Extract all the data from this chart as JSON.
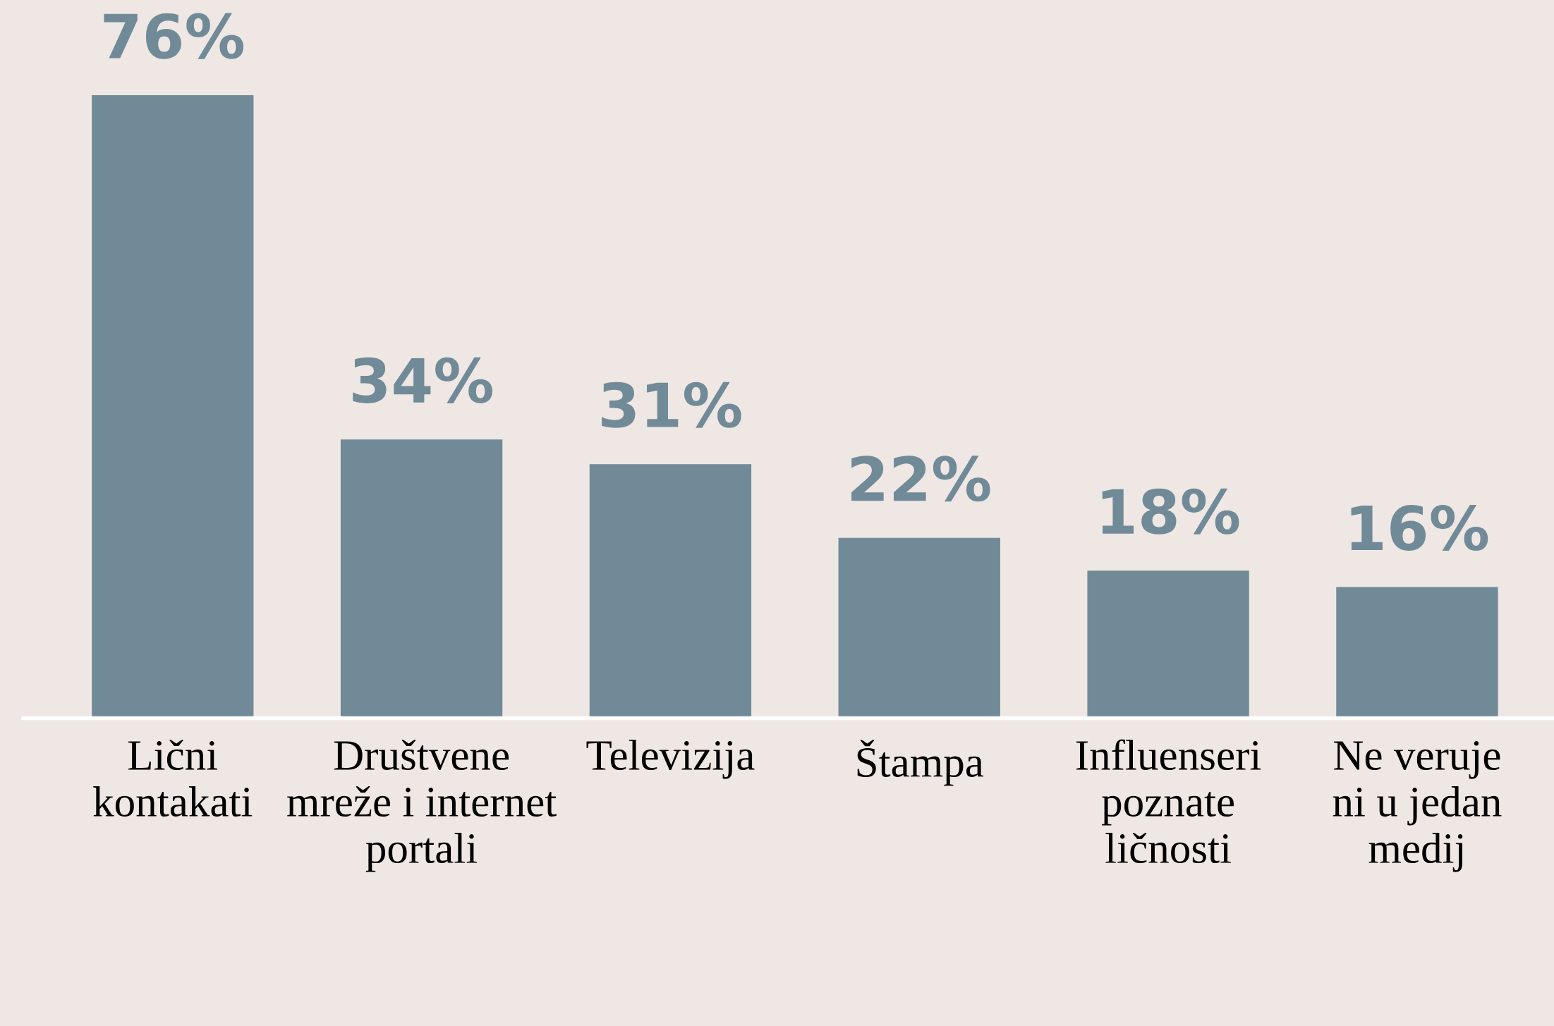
{
  "chart_data": {
    "type": "bar",
    "categories": [
      "Lični\nkontakati",
      "Društvene\nmreže i internet\nportali",
      "Televizija",
      "Štampa",
      "Influenseri\npoznate\nličnosti",
      "Ne veruje\nni u jedan\nmedij"
    ],
    "values": [
      76,
      34,
      31,
      22,
      18,
      16
    ],
    "color": "#718a98",
    "data_labels": true,
    "value_labels": [
      "76%",
      "34%",
      "31%",
      "22%",
      "18%",
      "16%"
    ],
    "grid": false,
    "legend": false,
    "tick_labels": "x"
  }
}
